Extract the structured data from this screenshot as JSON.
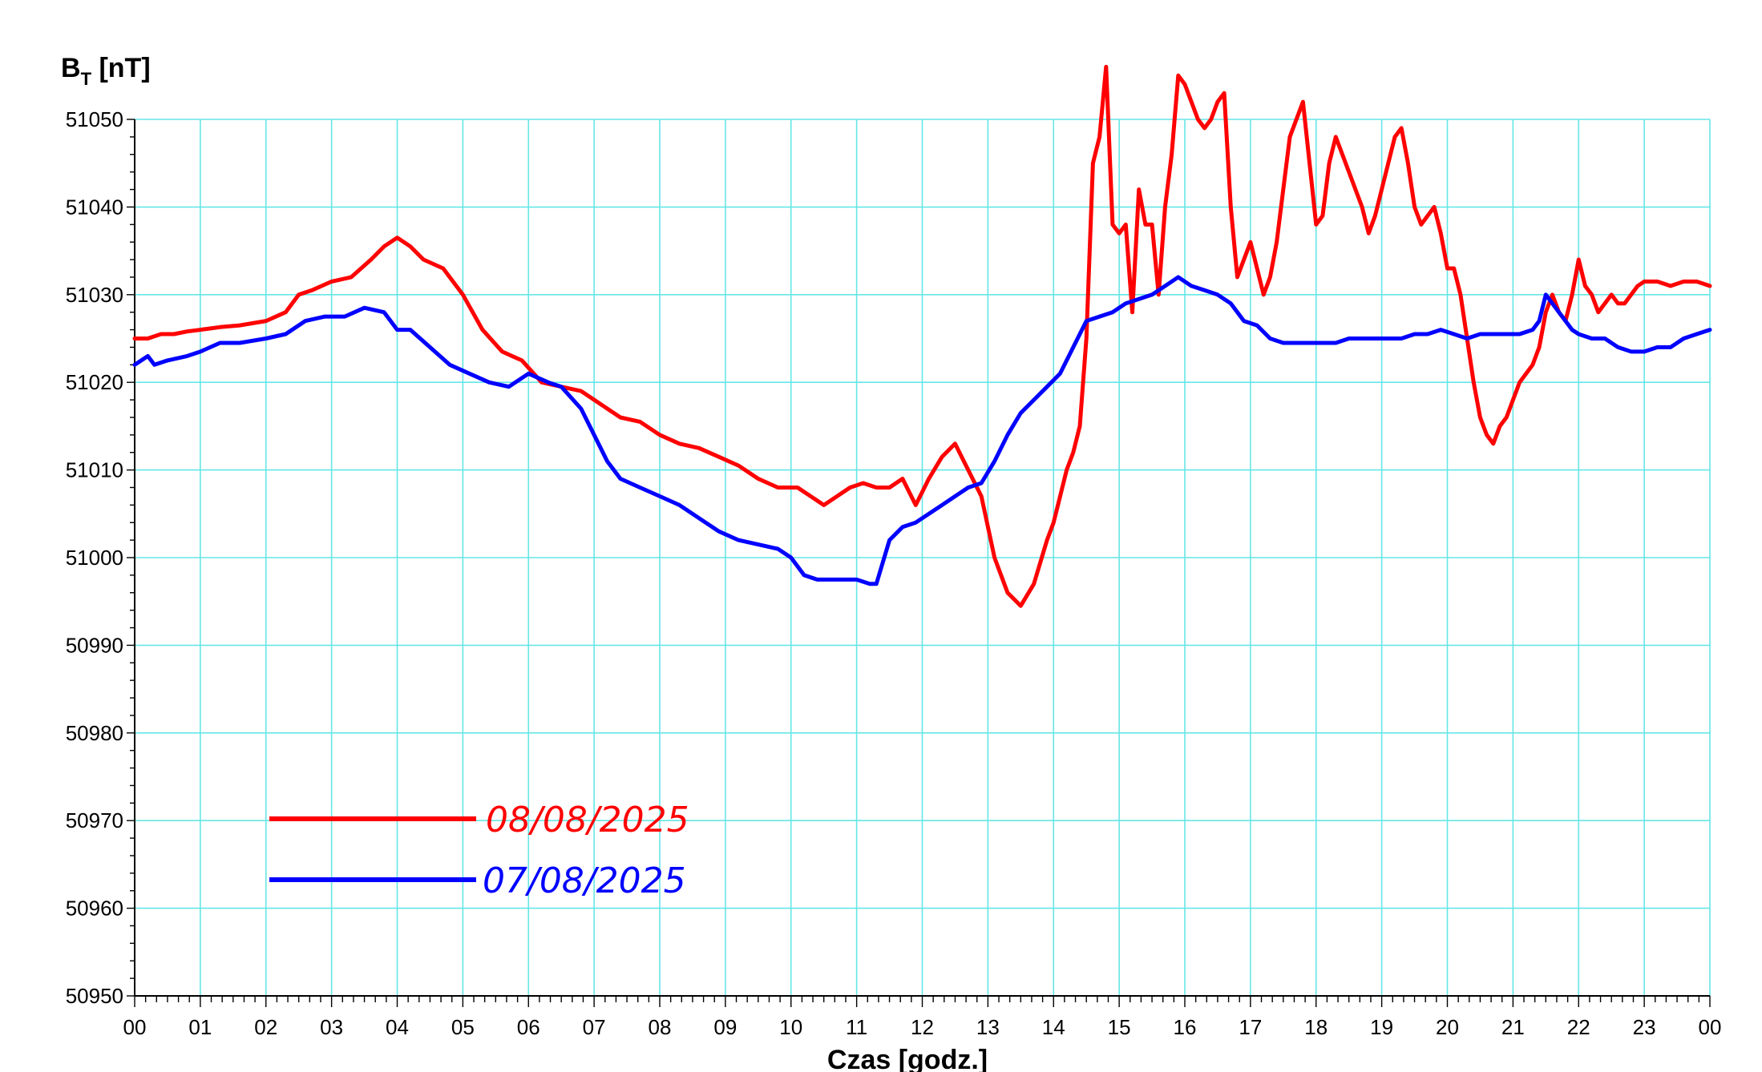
{
  "chart_data": {
    "type": "line",
    "ylabel_main": "B",
    "ylabel_sub": "T",
    "ylabel_unit": " [nT]",
    "xlabel": "Czas [godz.]",
    "ylim": [
      50950,
      51050
    ],
    "yticks": [
      51050,
      51040,
      51030,
      51020,
      51010,
      51000,
      50990,
      50980,
      50970,
      50960,
      50950
    ],
    "xlim": [
      0,
      24
    ],
    "xtick_labels": [
      "00",
      "01",
      "02",
      "03",
      "04",
      "05",
      "06",
      "07",
      "08",
      "09",
      "10",
      "11",
      "12",
      "13",
      "14",
      "15",
      "16",
      "17",
      "18",
      "19",
      "20",
      "21",
      "22",
      "23",
      "00"
    ],
    "grid": true,
    "legend_position": "lower-left",
    "colors": {
      "grid": "#66e6e6",
      "series_0": "#ff0000",
      "series_1": "#0000ff"
    },
    "series": [
      {
        "name": "08/08/2025",
        "color": "#ff0000",
        "x": [
          0,
          0.2,
          0.4,
          0.6,
          0.8,
          1.0,
          1.3,
          1.6,
          2.0,
          2.3,
          2.5,
          2.7,
          3.0,
          3.3,
          3.6,
          3.8,
          4.0,
          4.2,
          4.4,
          4.7,
          5.0,
          5.3,
          5.6,
          5.9,
          6.2,
          6.5,
          6.8,
          7.1,
          7.4,
          7.7,
          8.0,
          8.3,
          8.6,
          8.9,
          9.2,
          9.5,
          9.8,
          10.1,
          10.3,
          10.5,
          10.7,
          10.9,
          11.1,
          11.3,
          11.5,
          11.7,
          11.9,
          12.1,
          12.3,
          12.5,
          12.7,
          12.9,
          13.1,
          13.3,
          13.5,
          13.7,
          13.9,
          14.0,
          14.2,
          14.3,
          14.4,
          14.5,
          14.6,
          14.7,
          14.8,
          14.9,
          15.0,
          15.1,
          15.2,
          15.3,
          15.4,
          15.5,
          15.6,
          15.7,
          15.8,
          15.9,
          16.0,
          16.1,
          16.2,
          16.3,
          16.4,
          16.5,
          16.6,
          16.7,
          16.8,
          16.9,
          17.0,
          17.1,
          17.2,
          17.3,
          17.4,
          17.5,
          17.6,
          17.7,
          17.8,
          17.9,
          18.0,
          18.1,
          18.2,
          18.3,
          18.4,
          18.5,
          18.6,
          18.7,
          18.8,
          18.9,
          19.0,
          19.1,
          19.2,
          19.3,
          19.4,
          19.5,
          19.6,
          19.7,
          19.8,
          19.9,
          20.0,
          20.1,
          20.2,
          20.3,
          20.4,
          20.5,
          20.6,
          20.7,
          20.8,
          20.9,
          21.0,
          21.1,
          21.2,
          21.3,
          21.4,
          21.5,
          21.6,
          21.7,
          21.8,
          21.9,
          22.0,
          22.1,
          22.2,
          22.3,
          22.4,
          22.5,
          22.6,
          22.7,
          22.8,
          22.9,
          23.0,
          23.2,
          23.4,
          23.6,
          23.8,
          24.0
        ],
        "y": [
          51025,
          51025,
          51025.5,
          51025.5,
          51025.8,
          51026,
          51026.3,
          51026.5,
          51027,
          51028,
          51030,
          51030.5,
          51031.5,
          51032,
          51034,
          51035.5,
          51036.5,
          51035.5,
          51034,
          51033,
          51030,
          51026,
          51023.5,
          51022.5,
          51020,
          51019.5,
          51019,
          51017.5,
          51016,
          51015.5,
          51014,
          51013,
          51012.5,
          51011.5,
          51010.5,
          51009,
          51008,
          51008,
          51007,
          51006,
          51007,
          51008,
          51008.5,
          51008,
          51008,
          51009,
          51006,
          51009,
          51011.5,
          51013,
          51010,
          51007,
          51000,
          50996,
          50994.5,
          50997,
          51002,
          51004,
          51010,
          51012,
          51015,
          51025,
          51045,
          51048,
          51056,
          51038,
          51037,
          51038,
          51028,
          51042,
          51038,
          51038,
          51030,
          51040,
          51046,
          51055,
          51054,
          51052,
          51050,
          51049,
          51050,
          51052,
          51053,
          51040,
          51032,
          51034,
          51036,
          51033,
          51030,
          51032,
          51036,
          51042,
          51048,
          51050,
          51052,
          51045,
          51038,
          51039,
          51045,
          51048,
          51046,
          51044,
          51042,
          51040,
          51037,
          51039,
          51042,
          51045,
          51048,
          51049,
          51045,
          51040,
          51038,
          51039,
          51040,
          51037,
          51033,
          51033,
          51030,
          51025,
          51020,
          51016,
          51014,
          51013,
          51015,
          51016,
          51018,
          51020,
          51021,
          51022,
          51024,
          51028,
          51030,
          51028,
          51027,
          51030,
          51034,
          51031,
          51030,
          51028,
          51029,
          51030,
          51029,
          51029,
          51030,
          51031,
          51031.5,
          51031.5,
          51031,
          51031.5,
          51031.5,
          51031
        ]
      },
      {
        "name": "07/08/2025",
        "color": "#0000ff",
        "x": [
          0,
          0.1,
          0.2,
          0.3,
          0.5,
          0.8,
          1.0,
          1.3,
          1.6,
          2.0,
          2.3,
          2.6,
          2.9,
          3.2,
          3.5,
          3.8,
          4.0,
          4.2,
          4.5,
          4.8,
          5.1,
          5.4,
          5.7,
          6.0,
          6.3,
          6.5,
          6.8,
          7.0,
          7.2,
          7.4,
          7.7,
          8.0,
          8.3,
          8.6,
          8.9,
          9.2,
          9.5,
          9.8,
          10.0,
          10.2,
          10.4,
          10.6,
          10.8,
          11.0,
          11.2,
          11.3,
          11.5,
          11.7,
          11.9,
          12.1,
          12.3,
          12.5,
          12.7,
          12.9,
          13.1,
          13.3,
          13.5,
          13.7,
          13.9,
          14.1,
          14.3,
          14.5,
          14.7,
          14.9,
          15.1,
          15.3,
          15.5,
          15.7,
          15.9,
          16.1,
          16.3,
          16.5,
          16.7,
          16.9,
          17.1,
          17.3,
          17.5,
          17.7,
          17.9,
          18.1,
          18.3,
          18.5,
          18.7,
          18.9,
          19.1,
          19.3,
          19.5,
          19.7,
          19.9,
          20.1,
          20.3,
          20.5,
          20.7,
          20.9,
          21.1,
          21.3,
          21.4,
          21.5,
          21.6,
          21.7,
          21.8,
          21.9,
          22.0,
          22.2,
          22.4,
          22.6,
          22.8,
          23.0,
          23.2,
          23.4,
          23.6,
          23.8,
          24.0
        ],
        "y": [
          51022,
          51022.5,
          51023,
          51022,
          51022.5,
          51023,
          51023.5,
          51024.5,
          51024.5,
          51025,
          51025.5,
          51027,
          51027.5,
          51027.5,
          51028.5,
          51028,
          51026,
          51026,
          51024,
          51022,
          51021,
          51020,
          51019.5,
          51021,
          51020,
          51019.5,
          51017,
          51014,
          51011,
          51009,
          51008,
          51007,
          51006,
          51004.5,
          51003,
          51002,
          51001.5,
          51001,
          51000,
          50998,
          50997.5,
          50997.5,
          50997.5,
          50997.5,
          50997,
          50997,
          51002,
          51003.5,
          51004,
          51005,
          51006,
          51007,
          51008,
          51008.5,
          51011,
          51014,
          51016.5,
          51018,
          51019.5,
          51021,
          51024,
          51027,
          51027.5,
          51028,
          51029,
          51029.5,
          51030,
          51031,
          51032,
          51031,
          51030.5,
          51030,
          51029,
          51027,
          51026.5,
          51025,
          51024.5,
          51024.5,
          51024.5,
          51024.5,
          51024.5,
          51025,
          51025,
          51025,
          51025,
          51025,
          51025.5,
          51025.5,
          51026,
          51025.5,
          51025,
          51025.5,
          51025.5,
          51025.5,
          51025.5,
          51026,
          51027,
          51030,
          51029,
          51028,
          51027,
          51026,
          51025.5,
          51025,
          51025,
          51024,
          51023.5,
          51023.5,
          51024,
          51024,
          51025,
          51025.5,
          51026
        ]
      }
    ]
  }
}
